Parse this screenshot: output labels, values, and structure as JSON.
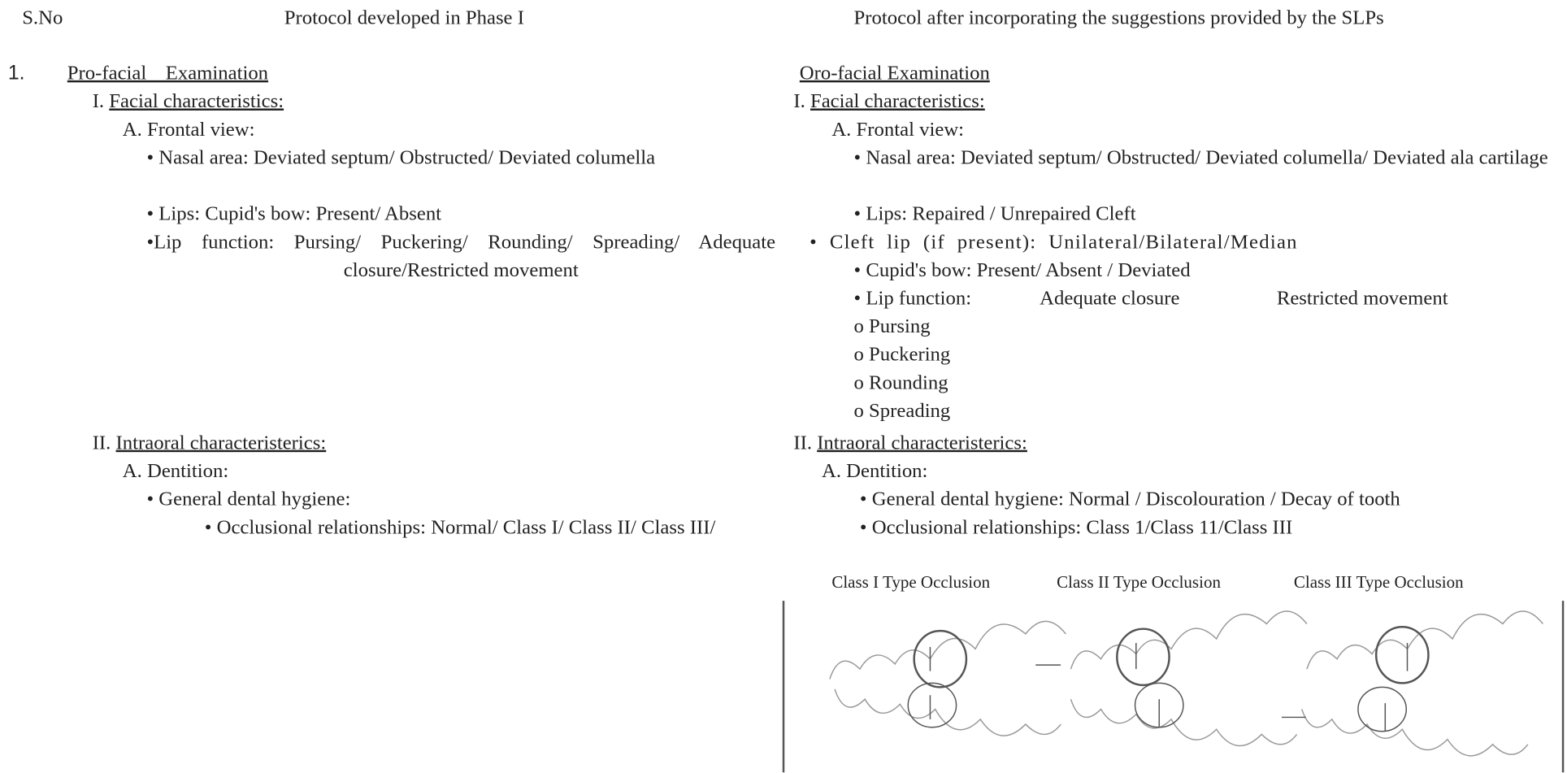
{
  "header": {
    "sno": "S.No",
    "phase1": "Protocol developed in Phase I",
    "revised": "Protocol after incorporating the suggestions provided by the SLPs"
  },
  "rows": [
    {
      "number": "1.",
      "phase1": {
        "section": "Pro-facial Examination",
        "facial": {
          "prefix": "I.",
          "label": "Facial characteristics:"
        },
        "frontal": "A. Frontal view:",
        "nasal": "• Nasal area: Deviated septum/ Obstructed/ Deviated columella",
        "lips": "• Lips: Cupid's bow: Present/ Absent",
        "lip_function": "•Lip function: Pursing/ Puckering/ Rounding/ Spreading/ Adequate closure/Restricted movement",
        "intraoral": {
          "prefix": "II.",
          "label": "Intraoral characteristerics:"
        },
        "dentition": "A. Dentition:",
        "hygiene": "• General dental hygiene:",
        "occlusion": "• Occlusional relationships: Normal/ Class I/ Class II/ Class III/"
      },
      "revised": {
        "section": "Oro-facial Examination",
        "facial": {
          "prefix": "I.",
          "label": "Facial characteristics:"
        },
        "frontal": "A. Frontal view:",
        "nasal": "• Nasal area: Deviated septum/ Obstructed/ Deviated columella/ Deviated ala cartilage",
        "lips": "• Lips: Repaired / Unrepaired Cleft",
        "cleft_lip": "• Cleft lip (if present): Unilateral/Bilateral/Median",
        "cupids_bow": "• Cupid's bow: Present/ Absent / Deviated",
        "lip_function": [
          "• Lip function:",
          "Adequate closure",
          "Restricted movement"
        ],
        "lip_movements": [
          "o Pursing",
          "o Puckering",
          "o Rounding",
          "o Spreading"
        ],
        "intraoral": {
          "prefix": "II.",
          "label": "Intraoral characteristerics:"
        },
        "dentition": "A. Dentition:",
        "hygiene": "• General dental hygiene: Normal / Discolouration / Decay of tooth",
        "occlusion": "• Occlusional relationships: Class 1/Class 11/Class III",
        "figure_captions": [
          "Class I Type Occlusion",
          "Class II Type Occlusion",
          "Class III Type Occlusion"
        ]
      }
    }
  ]
}
